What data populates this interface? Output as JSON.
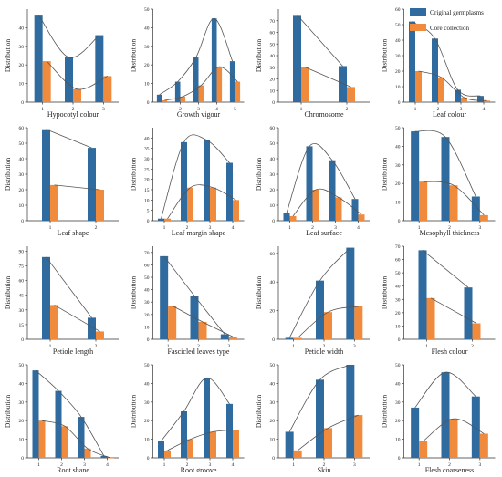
{
  "legend": {
    "placement": "top-right",
    "items": [
      {
        "label": "Original germplasms",
        "color": "#2f6b9e"
      },
      {
        "label": "Core collection",
        "color": "#f08a3c"
      }
    ]
  },
  "chart_data": [
    {
      "type": "bar",
      "title": "Hypocotyl colour",
      "ylabel": "Distribution",
      "categories": [
        "1",
        "2",
        "3"
      ],
      "ylim": [
        0,
        50
      ],
      "yticks": [
        0,
        10,
        20,
        30,
        40
      ],
      "series": [
        {
          "name": "Original germplasms",
          "values": [
            47,
            24,
            36
          ]
        },
        {
          "name": "Core collection",
          "values": [
            22,
            7,
            14
          ]
        }
      ]
    },
    {
      "type": "bar",
      "title": "Growth vigour",
      "ylabel": "Distribution",
      "categories": [
        "1",
        "2",
        "3",
        "4",
        "5"
      ],
      "ylim": [
        0,
        50
      ],
      "yticks": [
        0,
        10,
        20,
        30,
        40,
        50
      ],
      "series": [
        {
          "name": "Original germplasms",
          "values": [
            4,
            11,
            24,
            45,
            22
          ]
        },
        {
          "name": "Core collection",
          "values": [
            1,
            3,
            9,
            19,
            11
          ]
        }
      ]
    },
    {
      "type": "bar",
      "title": "Chromosome",
      "ylabel": "Distribution",
      "categories": [
        "1",
        "2"
      ],
      "ylim": [
        0,
        80
      ],
      "yticks": [
        0,
        10,
        20,
        30,
        40,
        50,
        60,
        70
      ],
      "series": [
        {
          "name": "Original germplasms",
          "values": [
            75,
            31
          ]
        },
        {
          "name": "Core collection",
          "values": [
            30,
            13
          ]
        }
      ]
    },
    {
      "type": "bar",
      "title": "Leaf colour",
      "ylabel": "Distribution",
      "categories": [
        "1",
        "2",
        "3",
        "4"
      ],
      "ylim": [
        0,
        60
      ],
      "yticks": [
        0,
        10,
        20,
        30,
        40,
        50,
        60
      ],
      "series": [
        {
          "name": "Original germplasms",
          "values": [
            52,
            41,
            8,
            4
          ]
        },
        {
          "name": "Core collection",
          "values": [
            20,
            16,
            3,
            1
          ]
        }
      ]
    },
    {
      "type": "bar",
      "title": "Leaf shape",
      "ylabel": "Distribution",
      "categories": [
        "1",
        "2"
      ],
      "ylim": [
        0,
        60
      ],
      "yticks": [
        0,
        10,
        20,
        30,
        40,
        50,
        60
      ],
      "series": [
        {
          "name": "Original germplasms",
          "values": [
            59,
            47
          ]
        },
        {
          "name": "Core collection",
          "values": [
            23,
            20
          ]
        }
      ]
    },
    {
      "type": "bar",
      "title": "Leaf margin shape",
      "ylabel": "Distribution",
      "categories": [
        "1",
        "2",
        "3",
        "4"
      ],
      "ylim": [
        0,
        45
      ],
      "yticks": [
        0,
        5,
        10,
        15,
        20,
        25,
        30,
        35,
        40
      ],
      "series": [
        {
          "name": "Original germplasms",
          "values": [
            1,
            38,
            39,
            28
          ]
        },
        {
          "name": "Core collection",
          "values": [
            1,
            16,
            16,
            10
          ]
        }
      ]
    },
    {
      "type": "bar",
      "title": "Leaf surface",
      "ylabel": "Distribution",
      "categories": [
        "1",
        "2",
        "3",
        "4"
      ],
      "ylim": [
        0,
        60
      ],
      "yticks": [
        0,
        10,
        20,
        30,
        40,
        50,
        60
      ],
      "series": [
        {
          "name": "Original germplasms",
          "values": [
            5,
            48,
            39,
            14
          ]
        },
        {
          "name": "Core collection",
          "values": [
            3,
            20,
            15,
            4
          ]
        }
      ]
    },
    {
      "type": "bar",
      "title": "Mesophyll thickness",
      "ylabel": "Distribution",
      "categories": [
        "1",
        "2",
        "3"
      ],
      "ylim": [
        0,
        50
      ],
      "yticks": [
        0,
        10,
        20,
        30,
        40,
        50
      ],
      "series": [
        {
          "name": "Original germplasms",
          "values": [
            48,
            45,
            13
          ]
        },
        {
          "name": "Core collection",
          "values": [
            21,
            19,
            3
          ]
        }
      ]
    },
    {
      "type": "bar",
      "title": "Petiole length",
      "ylabel": "Distribution",
      "categories": [
        "1",
        "2"
      ],
      "ylim": [
        0,
        95
      ],
      "yticks": [
        0,
        15,
        30,
        45,
        60,
        75,
        90
      ],
      "series": [
        {
          "name": "Original germplasms",
          "values": [
            84,
            22
          ]
        },
        {
          "name": "Core collection",
          "values": [
            35,
            8
          ]
        }
      ]
    },
    {
      "type": "bar",
      "title": "Fascicled leaves type",
      "ylabel": "Distribution",
      "categories": [
        "1",
        "2",
        "3"
      ],
      "ylim": [
        0,
        75
      ],
      "yticks": [
        0,
        10,
        20,
        30,
        40,
        50,
        60,
        70
      ],
      "series": [
        {
          "name": "Original germplasms",
          "values": [
            67,
            35,
            4
          ]
        },
        {
          "name": "Core collection",
          "values": [
            27,
            14,
            2
          ]
        }
      ]
    },
    {
      "type": "bar",
      "title": "Petiole width",
      "ylabel": "Distribution",
      "categories": [
        "1",
        "2",
        "3"
      ],
      "ylim": [
        0,
        65
      ],
      "yticks": [
        0,
        20,
        40,
        60
      ],
      "series": [
        {
          "name": "Original germplasms",
          "values": [
            1,
            41,
            64
          ]
        },
        {
          "name": "Core collection",
          "values": [
            1,
            19,
            23
          ]
        }
      ]
    },
    {
      "type": "bar",
      "title": "Flesh colour",
      "ylabel": "Distribution",
      "categories": [
        "1",
        "2"
      ],
      "ylim": [
        0,
        70
      ],
      "yticks": [
        0,
        10,
        20,
        30,
        40,
        50,
        60,
        70
      ],
      "series": [
        {
          "name": "Original germplasms",
          "values": [
            67,
            39
          ]
        },
        {
          "name": "Core collection",
          "values": [
            31,
            12
          ]
        }
      ]
    },
    {
      "type": "bar",
      "title": "Root shape",
      "ylabel": "Distribution",
      "categories": [
        "1",
        "2",
        "3",
        "4"
      ],
      "ylim": [
        0,
        50
      ],
      "yticks": [
        0,
        10,
        20,
        30,
        40,
        50
      ],
      "series": [
        {
          "name": "Original germplasms",
          "values": [
            47,
            36,
            22,
            1
          ]
        },
        {
          "name": "Core collection",
          "values": [
            20,
            17,
            5,
            0
          ]
        }
      ]
    },
    {
      "type": "bar",
      "title": "Root groove",
      "ylabel": "Distribution",
      "categories": [
        "1",
        "2",
        "3",
        "4"
      ],
      "ylim": [
        0,
        50
      ],
      "yticks": [
        0,
        10,
        20,
        30,
        40,
        50
      ],
      "series": [
        {
          "name": "Original germplasms",
          "values": [
            9,
            25,
            43,
            29
          ]
        },
        {
          "name": "Core collection",
          "values": [
            4,
            10,
            14,
            15
          ]
        }
      ]
    },
    {
      "type": "bar",
      "title": "Skin",
      "ylabel": "Distribution",
      "categories": [
        "1",
        "2",
        "3"
      ],
      "ylim": [
        0,
        50
      ],
      "yticks": [
        0,
        10,
        20,
        30,
        40,
        50
      ],
      "series": [
        {
          "name": "Original germplasms",
          "values": [
            14,
            42,
            50
          ]
        },
        {
          "name": "Core collection",
          "values": [
            4,
            16,
            23
          ]
        }
      ]
    },
    {
      "type": "bar",
      "title": "Flesh coarseness",
      "ylabel": "Distribution",
      "categories": [
        "1",
        "2",
        "3"
      ],
      "ylim": [
        0,
        50
      ],
      "yticks": [
        0,
        10,
        20,
        30,
        40,
        50
      ],
      "series": [
        {
          "name": "Original germplasms",
          "values": [
            27,
            46,
            33
          ]
        },
        {
          "name": "Core collection",
          "values": [
            9,
            21,
            13
          ]
        }
      ]
    }
  ]
}
